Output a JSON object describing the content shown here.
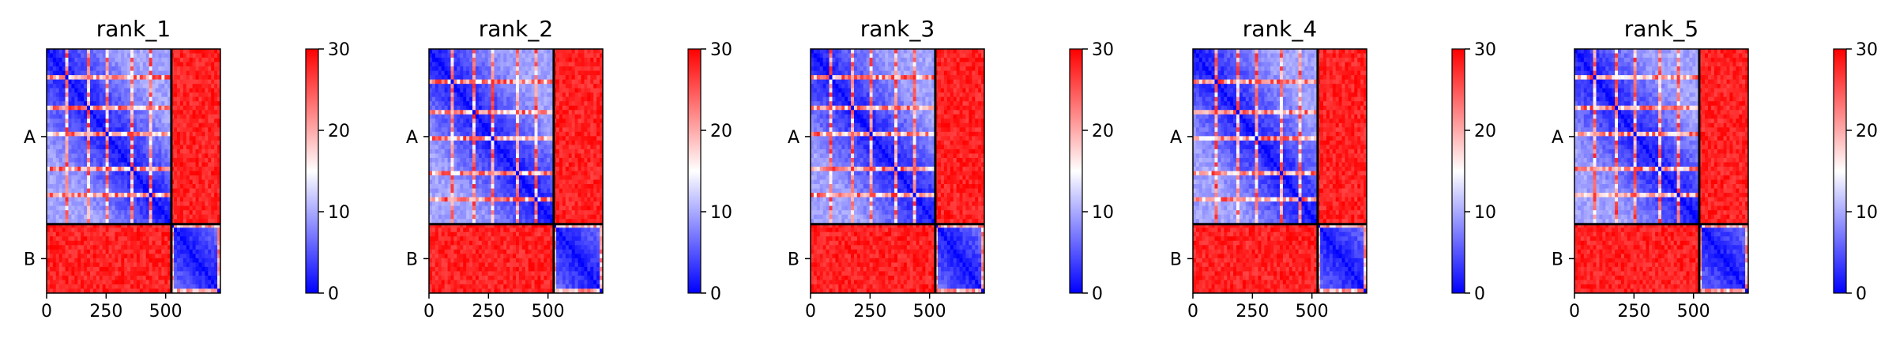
{
  "chart_data": [
    {
      "type": "heatmap",
      "title": "rank_1",
      "xticks": [
        0,
        250,
        500
      ],
      "x_range": [
        0,
        730
      ],
      "chain_boundary": 524,
      "yticks": [
        "A",
        "B"
      ],
      "colorbar": {
        "ticks": [
          0,
          10,
          20,
          30
        ],
        "range": [
          0,
          30
        ],
        "colors": [
          "#0000ff",
          "#ffffff",
          "#ff0000"
        ]
      }
    },
    {
      "type": "heatmap",
      "title": "rank_2",
      "xticks": [
        0,
        250,
        500
      ],
      "x_range": [
        0,
        730
      ],
      "chain_boundary": 524,
      "yticks": [
        "A",
        "B"
      ],
      "colorbar": {
        "ticks": [
          0,
          10,
          20,
          30
        ],
        "range": [
          0,
          30
        ],
        "colors": [
          "#0000ff",
          "#ffffff",
          "#ff0000"
        ]
      }
    },
    {
      "type": "heatmap",
      "title": "rank_3",
      "xticks": [
        0,
        250,
        500
      ],
      "x_range": [
        0,
        730
      ],
      "chain_boundary": 524,
      "yticks": [
        "A",
        "B"
      ],
      "colorbar": {
        "ticks": [
          0,
          10,
          20,
          30
        ],
        "range": [
          0,
          30
        ],
        "colors": [
          "#0000ff",
          "#ffffff",
          "#ff0000"
        ]
      }
    },
    {
      "type": "heatmap",
      "title": "rank_4",
      "xticks": [
        0,
        250,
        500
      ],
      "x_range": [
        0,
        730
      ],
      "chain_boundary": 524,
      "yticks": [
        "A",
        "B"
      ],
      "colorbar": {
        "ticks": [
          0,
          10,
          20,
          30
        ],
        "range": [
          0,
          30
        ],
        "colors": [
          "#0000ff",
          "#ffffff",
          "#ff0000"
        ]
      }
    },
    {
      "type": "heatmap",
      "title": "rank_5",
      "xticks": [
        0,
        250,
        500
      ],
      "x_range": [
        0,
        730
      ],
      "chain_boundary": 524,
      "yticks": [
        "A",
        "B"
      ],
      "colorbar": {
        "ticks": [
          0,
          10,
          20,
          30
        ],
        "range": [
          0,
          30
        ],
        "colors": [
          "#0000ff",
          "#ffffff",
          "#ff0000"
        ]
      }
    }
  ]
}
